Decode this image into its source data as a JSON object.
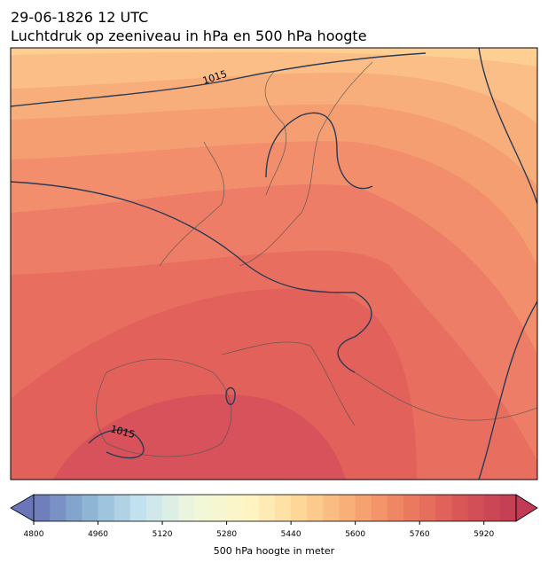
{
  "header": {
    "title": "29-06-1826 12 UTC",
    "subtitle": "Luchtdruk op zeeniveau in hPa en 500 hPa hoogte"
  },
  "map": {
    "isobar_labels": [
      "1015",
      "1015"
    ]
  },
  "colorbar": {
    "range": [
      4800,
      6000
    ],
    "step": 40,
    "ticks": [
      4800,
      4960,
      5120,
      5280,
      5440,
      5600,
      5760,
      5920
    ],
    "colors": [
      "#6a76b8",
      "#8bb3d3",
      "#c5e3ef",
      "#f0f7dc",
      "#fdf6c4",
      "#fdd596",
      "#f8a873",
      "#ec7b5f",
      "#d95557",
      "#c23b55"
    ],
    "label": "500 hPa hoogte in meter"
  }
}
